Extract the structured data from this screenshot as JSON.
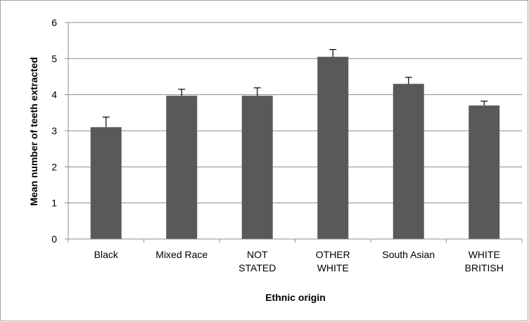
{
  "chart_data": {
    "type": "bar",
    "title": "",
    "xlabel": "Ethnic origin",
    "ylabel": "Mean number of teeth extracted",
    "categories": [
      [
        "Black"
      ],
      [
        "Mixed Race"
      ],
      [
        "NOT",
        "STATED"
      ],
      [
        "OTHER",
        "WHITE"
      ],
      [
        "South Asian"
      ],
      [
        "WHITE",
        "BRITISH"
      ]
    ],
    "values": [
      3.1,
      3.97,
      3.97,
      5.05,
      4.3,
      3.7
    ],
    "error_upper": [
      0.28,
      0.18,
      0.22,
      0.2,
      0.18,
      0.12
    ],
    "ylim": [
      0,
      6
    ],
    "yticks": [
      0,
      1,
      2,
      3,
      4,
      5,
      6
    ],
    "grid": true,
    "legend": "none",
    "bar_color": "#595959",
    "grid_color": "#8c8c8c",
    "axis_color": "#8c8c8c"
  }
}
